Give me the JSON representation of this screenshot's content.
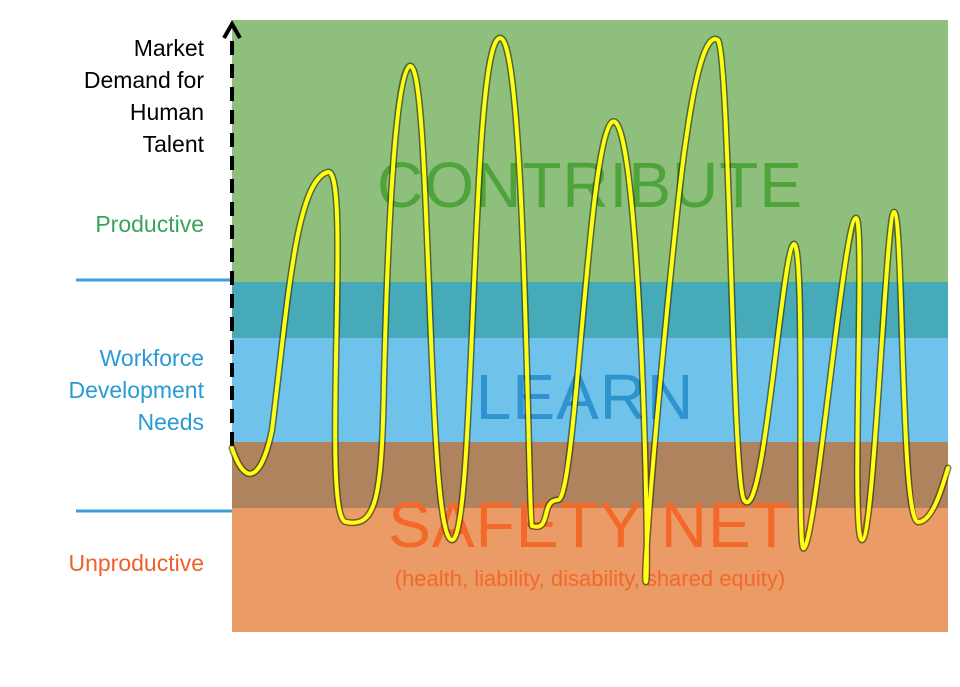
{
  "axis_title_lines": [
    "Market",
    "Demand for",
    "Human",
    "Talent"
  ],
  "left_labels": {
    "productive": "Productive",
    "workforce_lines": [
      "Workforce",
      "Development",
      "Needs"
    ],
    "unproductive": "Unproductive"
  },
  "zones": {
    "contribute": "CONTRIBUTE",
    "learn": "LEARN",
    "safety_net": "SAFETY NET",
    "safety_net_sub": "(health, liability, disability, shared equity)"
  },
  "colors": {
    "contribute_band": "#8fbf7c",
    "contribute_text": "#4ea33a",
    "learn_band": "#6fc3ea",
    "learn_text": "#2f93cf",
    "overlap_green_blue": "#47aab8",
    "overlap_blue_orange": "#b0835f",
    "safety_band": "#eb9b66",
    "safety_text": "#f2692a",
    "productive_label": "#3aa35a",
    "workforce_label": "#2a9ad6",
    "unproductive_label": "#f0602a",
    "divider": "#3aa0d8",
    "wave": "#ffff14"
  }
}
